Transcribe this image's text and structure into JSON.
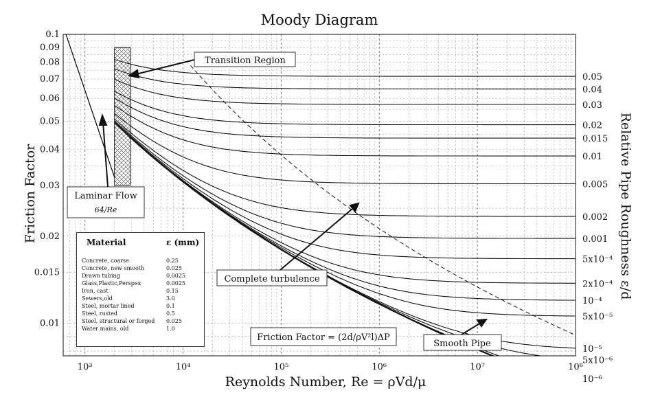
{
  "chart_data": {
    "type": "line",
    "title": "Moody Diagram",
    "xlabel": "Reynolds Number, Re = ρVd/μ",
    "ylabel": "Friction Factor",
    "y2label": "Relative Pipe Roughness ε/d",
    "xscale": "log",
    "yscale": "log",
    "xlim": [
      600,
      100000000
    ],
    "ylim": [
      0.0077,
      0.1
    ],
    "grid": true,
    "x_ticks": [
      "10³",
      "10⁴",
      "10⁵",
      "10⁶",
      "10⁷",
      "10⁸"
    ],
    "y_ticks": [
      "0.1",
      "0.09",
      "0.08",
      "0.07",
      "0.06",
      "0.05",
      "0.04",
      "0.03",
      "0.02",
      "0.015",
      "0.01"
    ],
    "x_tick_values": [
      1000,
      10000,
      100000,
      1000000,
      10000000,
      100000000
    ],
    "y_tick_values": [
      0.1,
      0.09,
      0.08,
      0.07,
      0.06,
      0.05,
      0.04,
      0.03,
      0.02,
      0.015,
      0.01
    ],
    "roughness_labels": [
      "0.05",
      "0.04",
      "0.03",
      "0.02",
      "0.015",
      "0.01",
      "0.005",
      "0.002",
      "0.001",
      "5x10⁻⁴",
      "2x10⁻⁴",
      "10⁻⁴",
      "5x10⁻⁵",
      "10⁻⁵",
      "5x10⁻⁶",
      "10⁻⁶"
    ],
    "roughness_values": [
      0.05,
      0.04,
      0.03,
      0.02,
      0.015,
      0.01,
      0.005,
      0.002,
      0.001,
      0.0005,
      0.0002,
      0.0001,
      5e-05,
      1e-05,
      5e-06,
      1e-06,
      0
    ],
    "laminar": {
      "label": "Laminar Flow",
      "formula": "64/Re",
      "x_range": [
        600,
        2000
      ]
    },
    "transition_region": {
      "label": "Transition Region",
      "x_range": [
        2000,
        2900
      ]
    },
    "smooth_pipe_label": "Smooth Pipe",
    "complete_turbulence_label": "Complete turbulence",
    "friction_formula": "Friction Factor = (2d/ρV²l)ΔP"
  },
  "material_table": {
    "header_material": "Material",
    "header_eps": "ε (mm)",
    "rows": [
      {
        "material": "Concrete, coarse",
        "eps": "0.25"
      },
      {
        "material": "Concrete, new smooth",
        "eps": "0.025"
      },
      {
        "material": "Drawn tubing",
        "eps": "0.0025"
      },
      {
        "material": "Glass,Plastic,Perspex",
        "eps": "0.0025"
      },
      {
        "material": "Iron, cast",
        "eps": "0.15"
      },
      {
        "material": "Sewers,old",
        "eps": "3.0"
      },
      {
        "material": "Steel, mortar lined",
        "eps": "0.1"
      },
      {
        "material": "Steel, rusted",
        "eps": "0.5"
      },
      {
        "material": "Steel, structural or forged",
        "eps": "0.025"
      },
      {
        "material": "Water mains, old",
        "eps": "1.0"
      }
    ]
  }
}
